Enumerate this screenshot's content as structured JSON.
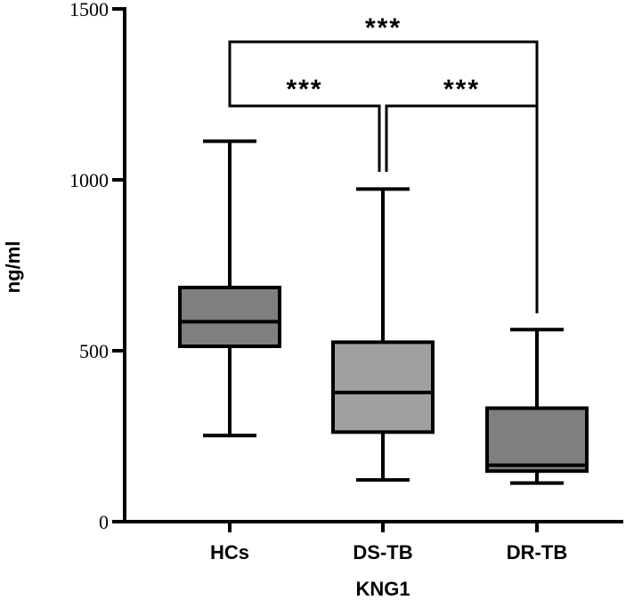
{
  "chart_data": {
    "type": "box",
    "xlabel": "KNG1",
    "ylabel": "ng/ml",
    "ylim": [
      0,
      1500
    ],
    "yticks": [
      0,
      500,
      1000,
      1500
    ],
    "categories": [
      "HCs",
      "DS-TB",
      "DR-TB"
    ],
    "boxes": [
      {
        "category": "HCs",
        "min": 252,
        "q1": 513,
        "median": 585,
        "q3": 685,
        "max": 1113,
        "color": "#7f7f7f"
      },
      {
        "category": "DS-TB",
        "min": 122,
        "q1": 262,
        "median": 378,
        "q3": 525,
        "max": 973,
        "color": "#a0a0a0"
      },
      {
        "category": "DR-TB",
        "min": 113,
        "q1": 148,
        "median": 165,
        "q3": 332,
        "max": 562,
        "color": "#7f7f7f"
      }
    ],
    "significance": [
      {
        "from": "HCs",
        "to": "DS-TB",
        "label": "***"
      },
      {
        "from": "DS-TB",
        "to": "DR-TB",
        "label": "***"
      },
      {
        "from": "HCs",
        "to": "DR-TB",
        "label": "***"
      }
    ],
    "grid": false,
    "legend": "none"
  }
}
